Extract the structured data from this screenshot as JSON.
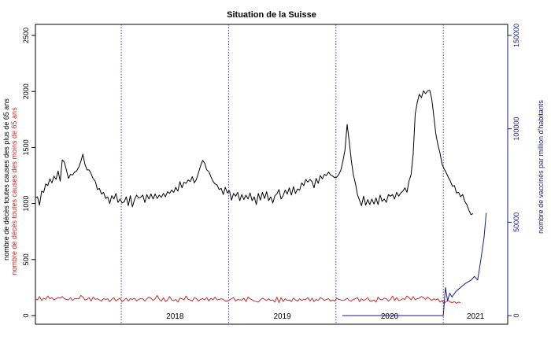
{
  "chart_data": {
    "type": "line",
    "title": "Situation de la Suisse",
    "ylabel_left": [
      "nombre de décès toutes causes des plus de 65 ans",
      "nombre de décès toutes causes des moins de 65 ans"
    ],
    "ylabel_right": "nombre de vaccinés par million d'habitants",
    "ylim_left": [
      0,
      2600
    ],
    "ylim_right": [
      0,
      156000
    ],
    "yticks_left": [
      0,
      500,
      1000,
      1500,
      2000,
      2500
    ],
    "yticks_right": [
      0,
      50000,
      100000,
      150000
    ],
    "year_labels": [
      {
        "label": "2018",
        "x": 2018.5
      },
      {
        "label": "2019",
        "x": 2019.5
      },
      {
        "label": "2020",
        "x": 2020.5
      },
      {
        "label": "2021",
        "x": 2021.3
      }
    ],
    "year_separators": [
      2018,
      2019,
      2020,
      2021
    ],
    "xlim": [
      2017.2,
      2021.6
    ],
    "grid": false,
    "colors": {
      "over65": "#000000",
      "under65": "#c03030",
      "vaccinated": "#1a1a8c",
      "separators": "#4040c0",
      "axis": "#000000",
      "right_axis": "#1a1a8c"
    },
    "series": [
      {
        "name": "nombre de décès toutes causes des plus de 65 ans",
        "axis": "left",
        "x_start": 2017.2,
        "x_step": 0.01923,
        "values": [
          1050,
          1060,
          985,
          1110,
          1100,
          1175,
          1160,
          1220,
          1185,
          1245,
          1215,
          1290,
          1200,
          1390,
          1370,
          1300,
          1225,
          1260,
          1255,
          1280,
          1290,
          1325,
          1375,
          1440,
          1350,
          1300,
          1300,
          1265,
          1220,
          1200,
          1125,
          1135,
          1085,
          1100,
          1045,
          1060,
          1000,
          1070,
          1040,
          1090,
          1010,
          1040,
          1005,
          1015,
          1060,
          980,
          1070,
          970,
          1035,
          1075,
          1050,
          1055,
          1075,
          1010,
          1080,
          1040,
          1085,
          1040,
          1085,
          1045,
          1075,
          1055,
          1090,
          1060,
          1105,
          1090,
          1120,
          1100,
          1145,
          1110,
          1195,
          1140,
          1190,
          1180,
          1210,
          1195,
          1240,
          1185,
          1215,
          1275,
          1335,
          1385,
          1360,
          1300,
          1285,
          1240,
          1200,
          1175,
          1165,
          1125,
          1135,
          1080,
          1145,
          1095,
          1115,
          1030,
          1090,
          1065,
          1100,
          1025,
          1080,
          1035,
          1075,
          1040,
          1095,
          1025,
          1060,
          990,
          1090,
          1030,
          1100,
          1045,
          1105,
          1025,
          1060,
          1005,
          1070,
          1085,
          1125,
          1040,
          1070,
          1120,
          1085,
          1140,
          1075,
          1150,
          1090,
          1130,
          1120,
          1185,
          1160,
          1215,
          1190,
          1215,
          1195,
          1140,
          1225,
          1180,
          1250,
          1220,
          1260,
          1250,
          1280,
          1255,
          1245,
          1230,
          1235,
          1260,
          1300,
          1380,
          1480,
          1705,
          1560,
          1390,
          1260,
          1180,
          1080,
          1030,
          980,
          1065,
          985,
          1035,
          990,
          1040,
          995,
          1050,
          990,
          1075,
          1020,
          1040,
          1010,
          1080,
          1065,
          1080,
          1040,
          1100,
          1065,
          1095,
          1110,
          1140,
          1100,
          1200,
          1260,
          1440,
          1800,
          1900,
          1975,
          1945,
          2005,
          1980,
          2005,
          2010,
          1935,
          1780,
          1620,
          1525,
          1450,
          1350,
          1310,
          1275,
          1235,
          1200,
          1155,
          1160,
          1095,
          1100,
          1060,
          1080,
          1020,
          990,
          940,
          900,
          910
        ]
      },
      {
        "name": "nombre de décès toutes causes des moins de 65 ans",
        "axis": "left",
        "x_start": 2017.2,
        "x_step": 0.01923,
        "values": [
          150,
          140,
          170,
          135,
          155,
          145,
          175,
          150,
          160,
          140,
          150,
          160,
          155,
          170,
          150,
          145,
          140,
          160,
          135,
          150,
          150,
          150,
          180,
          165,
          140,
          145,
          160,
          130,
          165,
          145,
          150,
          140,
          130,
          150,
          145,
          150,
          125,
          145,
          160,
          130,
          145,
          155,
          125,
          140,
          155,
          130,
          150,
          145,
          155,
          130,
          145,
          150,
          150,
          130,
          150,
          165,
          155,
          135,
          150,
          180,
          145,
          130,
          160,
          125,
          140,
          170,
          140,
          135,
          145,
          120,
          155,
          150,
          140,
          175,
          145,
          140,
          130,
          160,
          150,
          130,
          145,
          150,
          140,
          160,
          130,
          155,
          140,
          165,
          140,
          145,
          150,
          145,
          130,
          130,
          140,
          150,
          160,
          130,
          145,
          140,
          140,
          155,
          125,
          165,
          150,
          140,
          130,
          125,
          120,
          140,
          155,
          145,
          135,
          150,
          135,
          140,
          120,
          165,
          115,
          160,
          125,
          150,
          135,
          140,
          125,
          155,
          140,
          130,
          150,
          135,
          145,
          145,
          160,
          130,
          155,
          125,
          145,
          135,
          160,
          150,
          135,
          145,
          150,
          130,
          140,
          130,
          155,
          145,
          140,
          135,
          140,
          155,
          135,
          130,
          145,
          150,
          160,
          125,
          150,
          135,
          145,
          160,
          130,
          130,
          140,
          120,
          165,
          145,
          140,
          155,
          150,
          130,
          145,
          175,
          135,
          160,
          135,
          140,
          150,
          145,
          175,
          160,
          140,
          170,
          140,
          150,
          155,
          170,
          160,
          145,
          165,
          150,
          135,
          150,
          140,
          150,
          120,
          135,
          110,
          125,
          135,
          120,
          115,
          125,
          110,
          120,
          115
        ]
      },
      {
        "name": "nombre de vaccinés par million d'habitants",
        "axis": "right",
        "x": [
          2020.06,
          2020.5,
          2020.9,
          2021.0,
          2021.02,
          2021.04,
          2021.06,
          2021.08,
          2021.12,
          2021.16,
          2021.2,
          2021.23,
          2021.26,
          2021.29,
          2021.32,
          2021.35,
          2021.38,
          2021.4
        ],
        "values": [
          0,
          0,
          0,
          0,
          15000,
          8000,
          12000,
          10000,
          13000,
          15000,
          17000,
          18000,
          19000,
          21000,
          19000,
          30000,
          42000,
          55000
        ]
      }
    ]
  }
}
